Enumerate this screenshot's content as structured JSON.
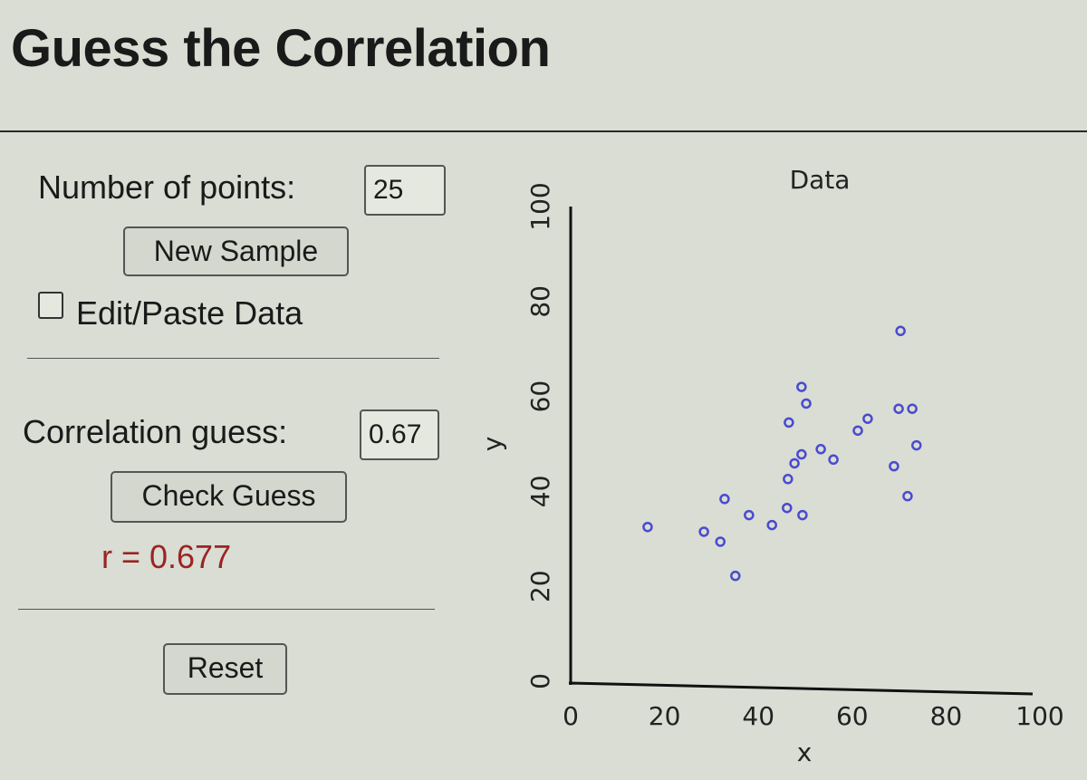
{
  "header": {
    "title": "Guess the Correlation"
  },
  "controls": {
    "points_label": "Number of points:",
    "points_value": "25",
    "new_sample": "New Sample",
    "edit_paste": "Edit/Paste Data",
    "guess_label": "Correlation guess:",
    "guess_value": "0.67",
    "check_guess": "Check Guess",
    "result": "r = 0.677",
    "reset": "Reset"
  },
  "chart_data": {
    "type": "scatter",
    "title": "Data",
    "x_label": "x",
    "y_label": "y",
    "color": "#4a4ad0",
    "x": [
      16.4,
      28.4,
      31.9,
      35.1,
      32.8,
      38.0,
      42.9,
      46.1,
      49.4,
      46.3,
      47.7,
      49.2,
      46.5,
      50.2,
      49.2,
      53.3,
      56.0,
      61.2,
      63.3,
      70.3,
      69.9,
      72.8,
      73.7,
      68.9,
      71.8
    ],
    "values": [
      32.5,
      31.5,
      29.4,
      22.2,
      38.4,
      35.0,
      32.9,
      36.5,
      35.0,
      42.6,
      45.9,
      47.8,
      54.5,
      58.5,
      62.0,
      48.9,
      46.7,
      52.8,
      55.3,
      73.8,
      57.4,
      57.4,
      49.7,
      45.3,
      39.0
    ],
    "xlim": [
      0,
      100
    ],
    "ylim": [
      0,
      100
    ],
    "xticks": [
      0,
      20,
      40,
      60,
      80,
      100
    ],
    "yticks": [
      0,
      20,
      40,
      60,
      80,
      100
    ],
    "grid": false
  }
}
